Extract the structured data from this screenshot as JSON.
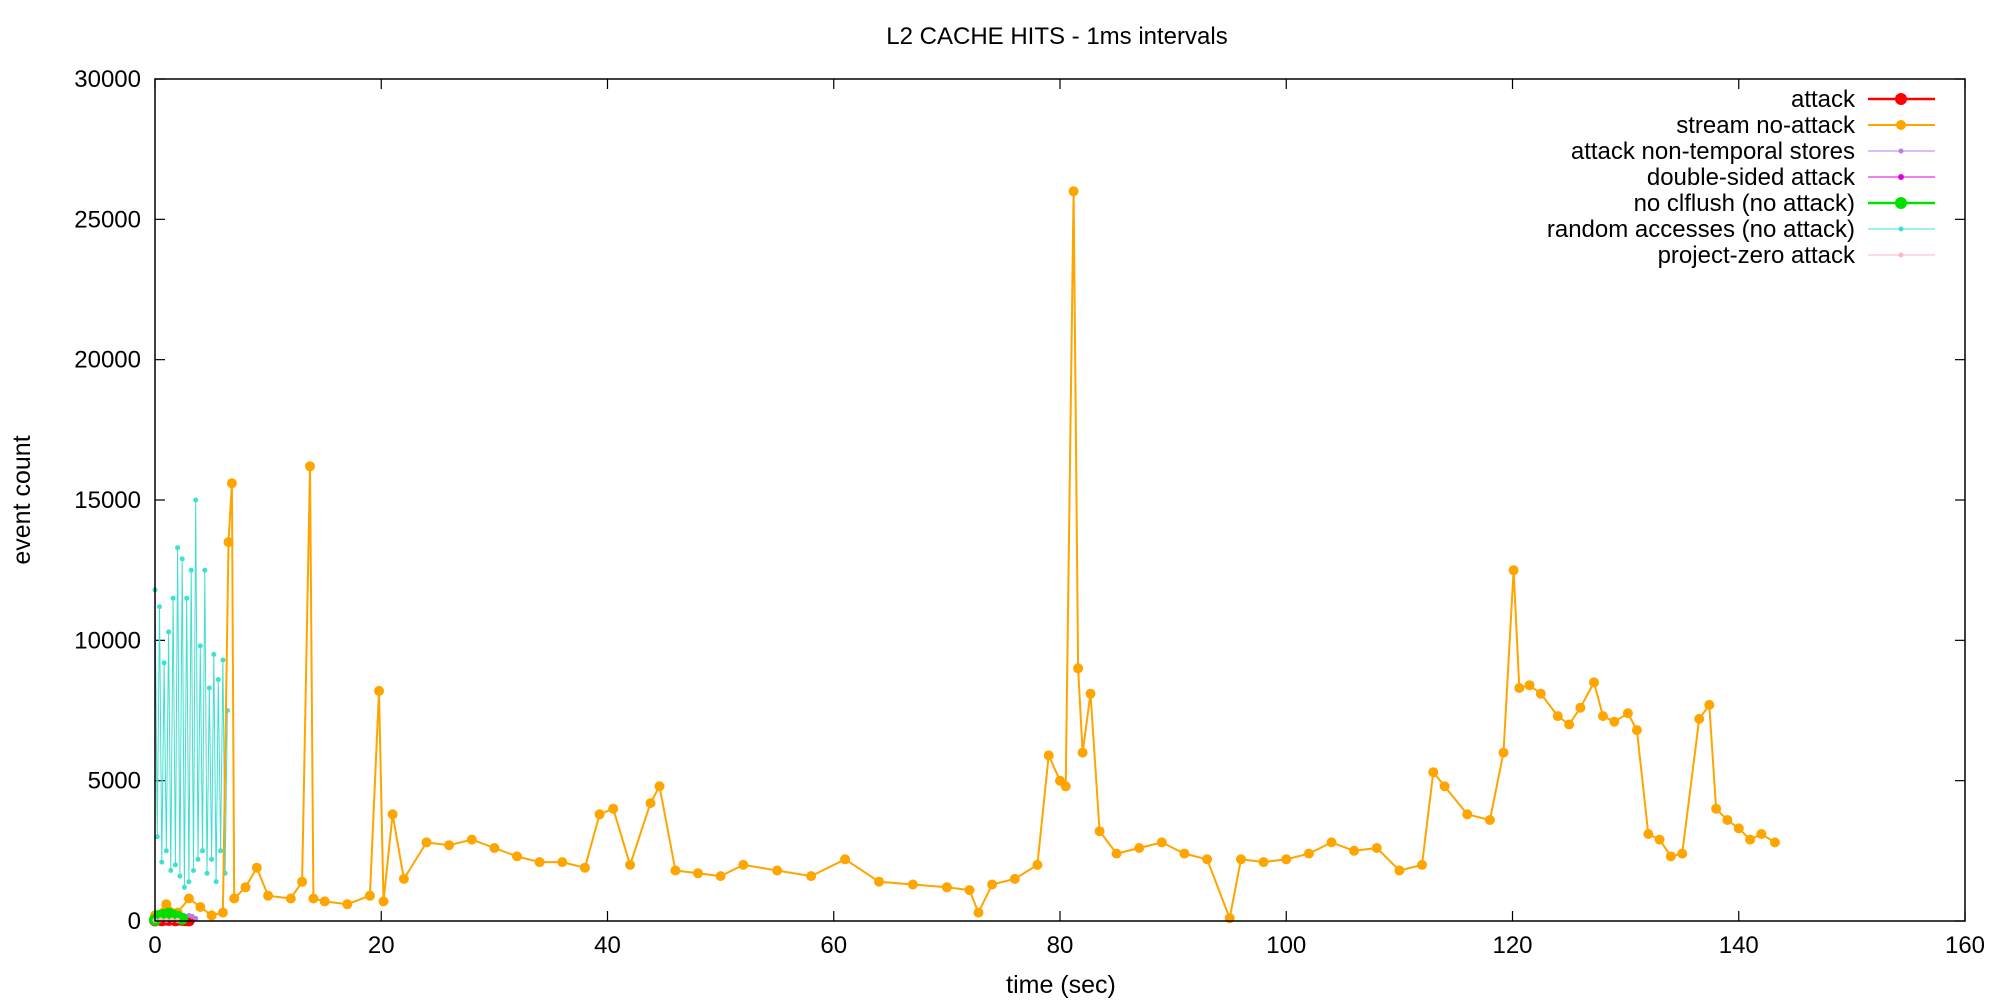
{
  "chart_data": {
    "type": "line",
    "title": "L2 CACHE HITS - 1ms intervals",
    "xlabel": "time (sec)",
    "ylabel": "event count",
    "xlim": [
      0,
      160
    ],
    "ylim": [
      0,
      30000
    ],
    "xticks": [
      0,
      20,
      40,
      60,
      80,
      100,
      120,
      140,
      160
    ],
    "yticks": [
      0,
      5000,
      10000,
      15000,
      20000,
      25000,
      30000
    ],
    "legend_position": "top-right",
    "series": [
      {
        "name": "attack",
        "color": "#ff0000",
        "marker": "circle-large",
        "x": [
          0.0,
          0.3,
          0.6,
          0.9,
          1.2,
          1.5,
          1.8,
          2.1,
          2.4,
          2.7,
          3.0
        ],
        "values": [
          20,
          60,
          30,
          50,
          40,
          70,
          30,
          50,
          40,
          30,
          20
        ]
      },
      {
        "name": "stream no-attack",
        "color": "#ffa500",
        "marker": "circle",
        "x": [
          0.0,
          1.0,
          2.0,
          3.0,
          4.0,
          5.0,
          6.0,
          6.5,
          6.8,
          7.0,
          8.0,
          9.0,
          10.0,
          12.0,
          13.0,
          13.7,
          14.0,
          15.0,
          17.0,
          19.0,
          19.8,
          20.2,
          21.0,
          22.0,
          24.0,
          26.0,
          28.0,
          30.0,
          32.0,
          34.0,
          36.0,
          38.0,
          39.3,
          40.5,
          42.0,
          43.8,
          44.6,
          46.0,
          48.0,
          50.0,
          52.0,
          55.0,
          58.0,
          61.0,
          64.0,
          67.0,
          70.0,
          72.0,
          72.8,
          74.0,
          76.0,
          78.0,
          79.0,
          80.0,
          80.5,
          81.2,
          81.6,
          82.0,
          82.7,
          83.5,
          85.0,
          87.0,
          89.0,
          91.0,
          93.0,
          95.0,
          96.0,
          98.0,
          100.0,
          102.0,
          104.0,
          106.0,
          108.0,
          110.0,
          112.0,
          113.0,
          114.0,
          116.0,
          118.0,
          119.2,
          120.1,
          120.6,
          121.5,
          122.5,
          124.0,
          125.0,
          126.0,
          127.2,
          128.0,
          129.0,
          130.2,
          131.0,
          132.0,
          133.0,
          134.0,
          135.0,
          136.5,
          137.4,
          138.0,
          139.0,
          140.0,
          141.0,
          142.0,
          143.2
        ],
        "values": [
          200,
          600,
          300,
          800,
          500,
          200,
          300,
          13500,
          15600,
          800,
          1200,
          1900,
          900,
          800,
          1400,
          16200,
          800,
          700,
          600,
          900,
          8200,
          700,
          3800,
          1500,
          2800,
          2700,
          2900,
          2600,
          2300,
          2100,
          2100,
          1900,
          3800,
          4000,
          2000,
          4200,
          4800,
          1800,
          1700,
          1600,
          2000,
          1800,
          1600,
          2200,
          1400,
          1300,
          1200,
          1100,
          300,
          1300,
          1500,
          2000,
          5900,
          5000,
          4800,
          26000,
          9000,
          6000,
          8100,
          3200,
          2400,
          2600,
          2800,
          2400,
          2200,
          100,
          2200,
          2100,
          2200,
          2400,
          2800,
          2500,
          2600,
          1800,
          2000,
          5300,
          4800,
          3800,
          3600,
          6000,
          12500,
          8300,
          8400,
          8100,
          7300,
          7000,
          7600,
          8500,
          7300,
          7100,
          7400,
          6800,
          3100,
          2900,
          2300,
          2400,
          7200,
          7700,
          4000,
          3600,
          3300,
          2900,
          3100,
          2800
        ]
      },
      {
        "name": "attack non-temporal stores",
        "color": "#b77aed",
        "marker": "dot",
        "x": [
          2.4,
          2.7,
          3.0,
          3.3,
          3.6
        ],
        "values": [
          80,
          120,
          200,
          160,
          90
        ]
      },
      {
        "name": "double-sided attack",
        "color": "#e000e0",
        "marker": "star",
        "x": [
          0.0,
          0.5,
          1.0,
          1.5,
          2.0
        ],
        "values": [
          30,
          60,
          40,
          50,
          30
        ]
      },
      {
        "name": "no clflush (no attack)",
        "color": "#00e000",
        "marker": "circle-large",
        "x": [
          0.0,
          0.4,
          0.8,
          1.2,
          1.6,
          2.0,
          2.4
        ],
        "values": [
          40,
          180,
          220,
          260,
          200,
          150,
          80
        ]
      },
      {
        "name": "random accesses (no attack)",
        "color": "#40e0d0",
        "marker": "dot",
        "x": [
          0.0,
          0.2,
          0.4,
          0.6,
          0.8,
          1.0,
          1.2,
          1.4,
          1.6,
          1.8,
          2.0,
          2.2,
          2.4,
          2.6,
          2.8,
          3.0,
          3.2,
          3.4,
          3.6,
          3.8,
          4.0,
          4.2,
          4.4,
          4.6,
          4.8,
          5.0,
          5.2,
          5.4,
          5.6,
          5.8,
          6.0,
          6.2,
          6.4
        ],
        "values": [
          11800,
          3000,
          11200,
          2100,
          9200,
          2500,
          10300,
          1800,
          11500,
          2000,
          13300,
          1600,
          12900,
          1200,
          11500,
          1400,
          12500,
          1800,
          15000,
          2200,
          9800,
          2500,
          12500,
          1700,
          8300,
          2200,
          9500,
          1400,
          8600,
          2500,
          9300,
          1700,
          7500
        ]
      },
      {
        "name": "project-zero attack",
        "color": "#ffb6c1",
        "marker": "dot",
        "x": [
          0.0,
          0.5,
          1.0,
          1.5,
          2.0
        ],
        "values": [
          20,
          40,
          30,
          35,
          25
        ]
      }
    ]
  }
}
